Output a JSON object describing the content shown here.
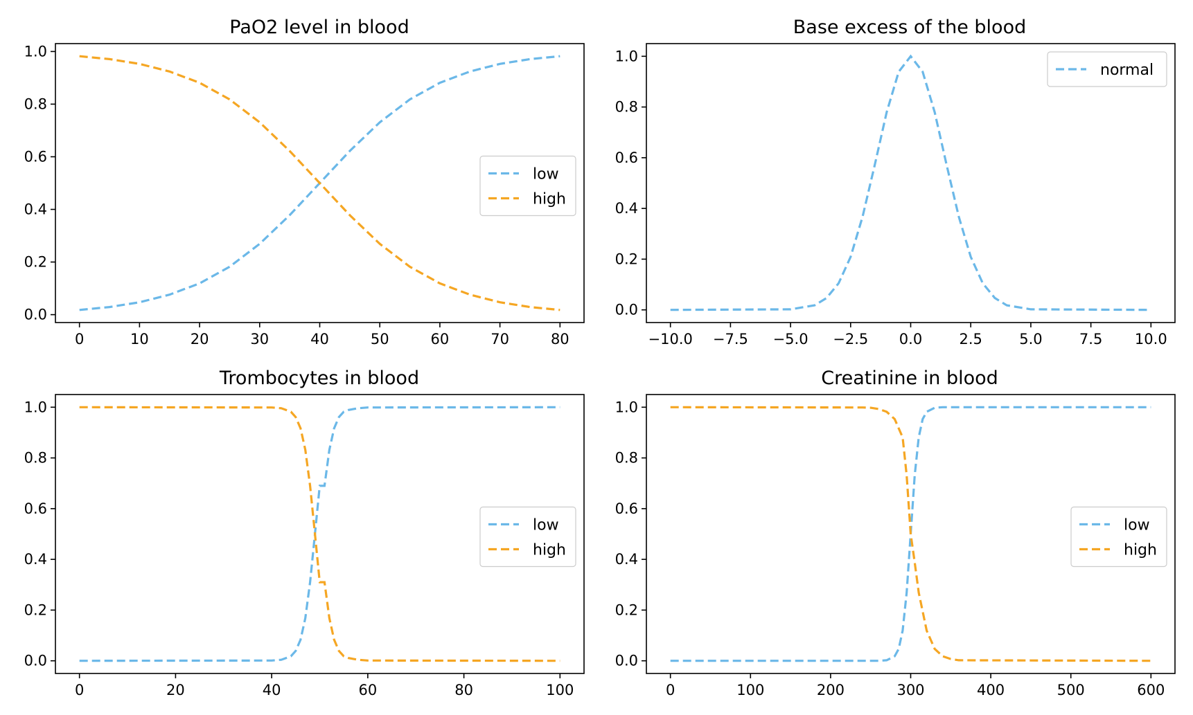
{
  "colors": {
    "low": "#6bb8e8",
    "high": "#f5a623",
    "normal": "#6bb8e8"
  },
  "chart_data": [
    {
      "type": "line",
      "title": "PaO2 level in blood",
      "xlim": [
        -4,
        84
      ],
      "ylim": [
        -0.03,
        1.03
      ],
      "xticks": [
        0,
        10,
        20,
        30,
        40,
        50,
        60,
        70,
        80
      ],
      "xtick_labels": [
        "0",
        "10",
        "20",
        "30",
        "40",
        "50",
        "60",
        "70",
        "80"
      ],
      "yticks": [
        0,
        0.2,
        0.4,
        0.6,
        0.8,
        1.0
      ],
      "ytick_labels": [
        "0.0",
        "0.2",
        "0.4",
        "0.6",
        "0.8",
        "1.0"
      ],
      "legend_placement": "center-right",
      "series": [
        {
          "name": "low",
          "color_key": "low",
          "x": [
            0,
            5,
            10,
            15,
            20,
            25,
            30,
            35,
            40,
            45,
            50,
            55,
            60,
            65,
            70,
            75,
            80
          ],
          "y": [
            0.018,
            0.029,
            0.047,
            0.076,
            0.119,
            0.182,
            0.269,
            0.378,
            0.5,
            0.622,
            0.731,
            0.818,
            0.881,
            0.924,
            0.953,
            0.971,
            0.982
          ]
        },
        {
          "name": "high",
          "color_key": "high",
          "x": [
            0,
            5,
            10,
            15,
            20,
            25,
            30,
            35,
            40,
            45,
            50,
            55,
            60,
            65,
            70,
            75,
            80
          ],
          "y": [
            0.982,
            0.971,
            0.953,
            0.924,
            0.881,
            0.818,
            0.731,
            0.622,
            0.5,
            0.378,
            0.269,
            0.182,
            0.119,
            0.076,
            0.047,
            0.029,
            0.018
          ]
        }
      ]
    },
    {
      "type": "line",
      "title": "Base excess of the blood",
      "xlim": [
        -11,
        11
      ],
      "ylim": [
        -0.05,
        1.05
      ],
      "xticks": [
        -10,
        -7.5,
        -5,
        -2.5,
        0,
        2.5,
        5,
        7.5,
        10
      ],
      "xtick_labels": [
        "−10.0",
        "−7.5",
        "−5.0",
        "−2.5",
        "0.0",
        "2.5",
        "5.0",
        "7.5",
        "10.0"
      ],
      "yticks": [
        0,
        0.2,
        0.4,
        0.6,
        0.8,
        1.0
      ],
      "ytick_labels": [
        "0.0",
        "0.2",
        "0.4",
        "0.6",
        "0.8",
        "1.0"
      ],
      "legend_placement": "top-right",
      "series": [
        {
          "name": "normal",
          "color_key": "normal",
          "x": [
            -10,
            -5,
            -4,
            -3.5,
            -3,
            -2.5,
            -2,
            -1.5,
            -1,
            -0.5,
            0,
            0.5,
            1,
            1.5,
            2,
            2.5,
            3,
            3.5,
            4,
            5,
            10
          ],
          "y": [
            0,
            0.002,
            0.018,
            0.047,
            0.105,
            0.209,
            0.368,
            0.57,
            0.779,
            0.939,
            1.0,
            0.939,
            0.779,
            0.57,
            0.368,
            0.209,
            0.105,
            0.047,
            0.018,
            0.002,
            0
          ]
        }
      ]
    },
    {
      "type": "line",
      "title": "Trombocytes in blood",
      "xlim": [
        -5,
        105
      ],
      "ylim": [
        -0.05,
        1.05
      ],
      "xticks": [
        0,
        20,
        40,
        60,
        80,
        100
      ],
      "xtick_labels": [
        "0",
        "20",
        "40",
        "60",
        "80",
        "100"
      ],
      "yticks": [
        0,
        0.2,
        0.4,
        0.6,
        0.8,
        1.0
      ],
      "ytick_labels": [
        "0.0",
        "0.2",
        "0.4",
        "0.6",
        "0.8",
        "1.0"
      ],
      "legend_placement": "center-right",
      "series": [
        {
          "name": "low",
          "color_key": "low",
          "x": [
            0,
            40,
            42,
            44,
            45,
            46,
            47,
            48,
            49,
            50,
            51,
            52,
            53,
            54,
            55,
            56,
            58,
            60,
            100
          ],
          "y": [
            0,
            0.001,
            0.004,
            0.018,
            0.039,
            0.083,
            0.168,
            0.31,
            0.5,
            0.69,
            0.69,
            0.832,
            0.917,
            0.961,
            0.982,
            0.989,
            0.996,
            0.999,
            1.0
          ]
        },
        {
          "name": "high",
          "color_key": "high",
          "x": [
            0,
            40,
            42,
            44,
            45,
            46,
            47,
            48,
            49,
            50,
            51,
            52,
            53,
            54,
            55,
            56,
            58,
            60,
            100
          ],
          "y": [
            1.0,
            0.999,
            0.996,
            0.982,
            0.961,
            0.917,
            0.832,
            0.69,
            0.5,
            0.31,
            0.31,
            0.168,
            0.083,
            0.039,
            0.018,
            0.011,
            0.004,
            0.001,
            0
          ]
        }
      ]
    },
    {
      "type": "line",
      "title": "Creatinine in blood",
      "xlim": [
        -30,
        630
      ],
      "ylim": [
        -0.05,
        1.05
      ],
      "xticks": [
        0,
        100,
        200,
        300,
        400,
        500,
        600
      ],
      "xtick_labels": [
        "0",
        "100",
        "200",
        "300",
        "400",
        "500",
        "600"
      ],
      "yticks": [
        0,
        0.2,
        0.4,
        0.6,
        0.8,
        1.0
      ],
      "ytick_labels": [
        "0.0",
        "0.2",
        "0.4",
        "0.6",
        "0.8",
        "1.0"
      ],
      "legend_placement": "center-right",
      "series": [
        {
          "name": "low",
          "color_key": "low",
          "x": [
            0,
            260,
            270,
            280,
            285,
            290,
            295,
            300,
            305,
            310,
            315,
            320,
            330,
            340,
            600
          ],
          "y": [
            0,
            0.0,
            0.002,
            0.018,
            0.047,
            0.119,
            0.269,
            0.5,
            0.731,
            0.881,
            0.953,
            0.982,
            0.998,
            1.0,
            1.0
          ]
        },
        {
          "name": "high",
          "color_key": "high",
          "x": [
            0,
            240,
            250,
            260,
            270,
            280,
            290,
            295,
            300,
            305,
            310,
            320,
            330,
            340,
            350,
            360,
            600
          ],
          "y": [
            1.0,
            0.999,
            0.998,
            0.993,
            0.982,
            0.953,
            0.881,
            0.731,
            0.5,
            0.388,
            0.269,
            0.119,
            0.047,
            0.018,
            0.007,
            0.002,
            0
          ]
        }
      ]
    }
  ]
}
